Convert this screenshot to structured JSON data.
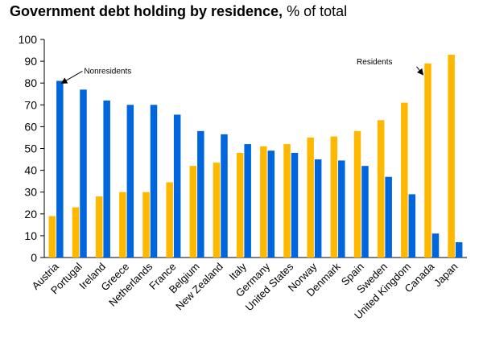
{
  "chart_data": {
    "type": "bar",
    "title": "Government debt holding by residence,",
    "unit": "% of total",
    "xlabel": "",
    "ylabel": "",
    "ylim": [
      0,
      100
    ],
    "yticks": [
      0,
      10,
      20,
      30,
      40,
      50,
      60,
      70,
      80,
      90,
      100
    ],
    "grid": false,
    "legend": "none",
    "categories": [
      "Austria",
      "Portugal",
      "Ireland",
      "Greece",
      "Netherlands",
      "France",
      "Belgium",
      "New Zealand",
      "Italy",
      "Germany",
      "United States",
      "Norway",
      "Denmark",
      "Spain",
      "Sweden",
      "United Kingdom",
      "Canada",
      "Japan"
    ],
    "series": [
      {
        "name": "Residents",
        "color": "#FFB800",
        "values": [
          19,
          23,
          28,
          30,
          30,
          34.5,
          42,
          43.5,
          48,
          51,
          52,
          55,
          55.5,
          58,
          63,
          71,
          89,
          93
        ]
      },
      {
        "name": "Nonresidents",
        "color": "#0066DD",
        "values": [
          81,
          77,
          72,
          70,
          70,
          65.5,
          58,
          56.5,
          52,
          49,
          48,
          45,
          44.5,
          42,
          37,
          29,
          11,
          7
        ]
      }
    ],
    "annotations": [
      {
        "text": "Nonresidents",
        "series": 1,
        "category": 0
      },
      {
        "text": "Residents",
        "series": 0,
        "category": 16
      }
    ]
  }
}
